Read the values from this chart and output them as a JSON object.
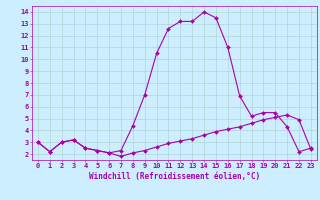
{
  "background_color": "#cceeff",
  "grid_color": "#aacccc",
  "line_color": "#aa00aa",
  "marker": "D",
  "markersize": 2.0,
  "linewidth": 0.8,
  "xlabel": "Windchill (Refroidissement éolien,°C)",
  "xlabel_fontsize": 5.5,
  "tick_fontsize": 5.0,
  "xlim": [
    -0.5,
    23.5
  ],
  "ylim": [
    1.5,
    14.5
  ],
  "yticks": [
    2,
    3,
    4,
    5,
    6,
    7,
    8,
    9,
    10,
    11,
    12,
    13,
    14
  ],
  "xticks": [
    0,
    1,
    2,
    3,
    4,
    5,
    6,
    7,
    8,
    9,
    10,
    11,
    12,
    13,
    14,
    15,
    16,
    17,
    18,
    19,
    20,
    21,
    22,
    23
  ],
  "curve1_x": [
    0,
    1,
    2,
    3,
    4,
    5,
    6,
    7,
    8,
    9,
    10,
    11,
    12,
    13,
    14,
    15,
    16,
    17,
    18,
    19,
    20,
    21,
    22,
    23
  ],
  "curve1_y": [
    3.0,
    2.2,
    3.0,
    3.2,
    2.5,
    2.3,
    2.1,
    1.8,
    2.1,
    2.3,
    2.6,
    2.9,
    3.1,
    3.3,
    3.6,
    3.9,
    4.1,
    4.3,
    4.6,
    4.9,
    5.1,
    5.3,
    4.9,
    2.4
  ],
  "curve2_x": [
    0,
    1,
    2,
    3,
    4,
    5,
    6,
    7,
    8,
    9,
    10,
    11,
    12,
    13,
    14,
    15,
    16,
    17,
    18,
    19,
    20,
    21,
    22,
    23
  ],
  "curve2_y": [
    3.0,
    2.2,
    3.0,
    3.2,
    2.5,
    2.3,
    2.1,
    2.3,
    4.4,
    7.0,
    10.5,
    12.6,
    13.2,
    13.2,
    14.0,
    13.5,
    11.0,
    6.9,
    5.2,
    5.5,
    5.5,
    4.3,
    2.2,
    2.5
  ]
}
